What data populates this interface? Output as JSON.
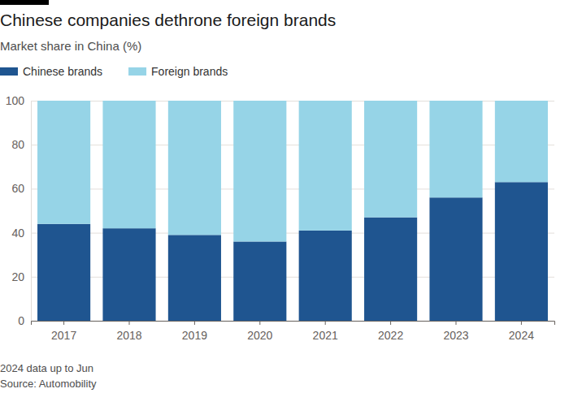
{
  "chart_data": {
    "type": "bar",
    "title": "Chinese companies dethrone foreign brands",
    "subtitle": "Market share in China (%)",
    "categories": [
      "2017",
      "2018",
      "2019",
      "2020",
      "2021",
      "2022",
      "2023",
      "2024"
    ],
    "series": [
      {
        "name": "Chinese brands",
        "color": "#1f5590",
        "values": [
          44,
          42,
          39,
          36,
          41,
          47,
          56,
          63
        ]
      },
      {
        "name": "Foreign brands",
        "color": "#96d4e7",
        "values": [
          56,
          58,
          61,
          64,
          59,
          53,
          44,
          37
        ]
      }
    ],
    "ylim": [
      0,
      100
    ],
    "yticks": [
      0,
      20,
      40,
      60,
      80,
      100
    ],
    "stacked": true,
    "grid": true,
    "legend": "top-left",
    "annotations": [
      "2024 data up to Jun",
      "Source: Automobility"
    ]
  }
}
